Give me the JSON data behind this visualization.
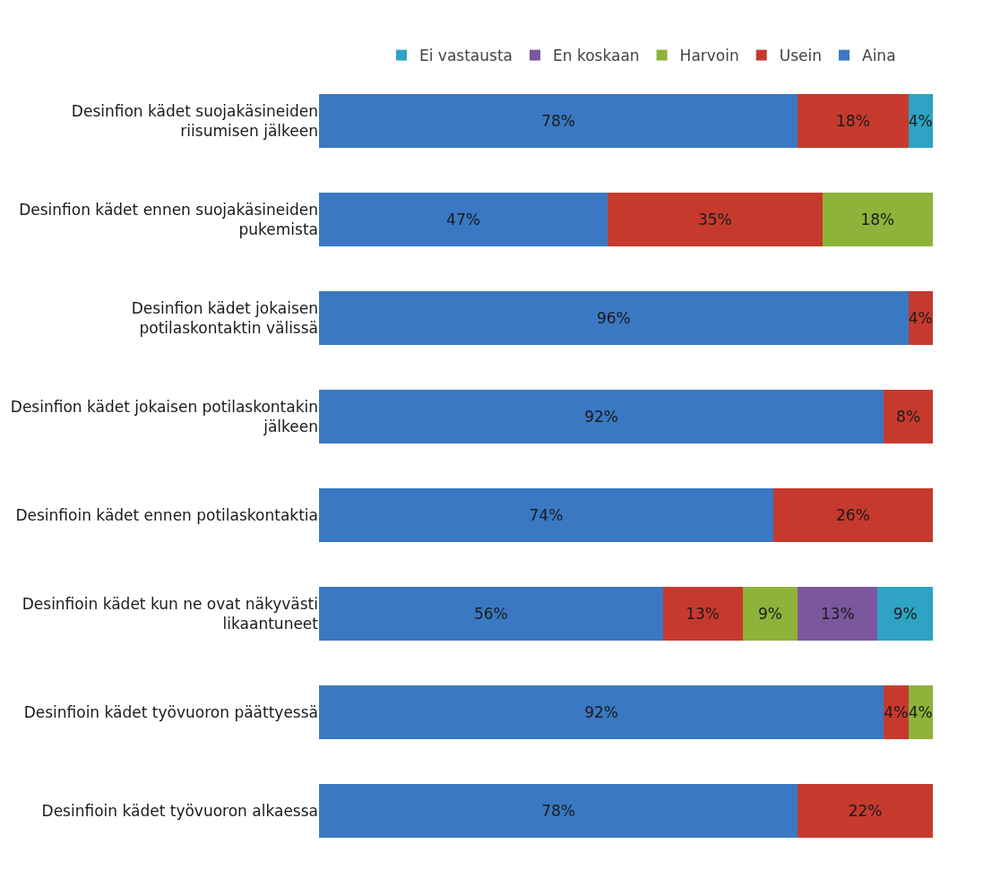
{
  "chart_data": {
    "type": "bar",
    "orientation": "horizontal",
    "stacked": true,
    "legend": "top",
    "grid": false,
    "categories": [
      "Desinfion kädet suojakäsineiden riisumisen jälkeen",
      "Desinfion kädet ennen suojakäsineiden pukemista",
      "Desinfion kädet jokaisen potilaskontaktin välissä",
      "Desinfion kädet jokaisen potilaskontakin jälkeen",
      "Desinfioin kädet ennen potilaskontaktia",
      "Desinfioin kädet kun ne ovat näkyvästi likaantuneet",
      "Desinfioin kädet työvuoron päättyessä",
      "Desinfioin kädet työvuoron alkaessa"
    ],
    "series": [
      {
        "name": "Aina",
        "color": "#3a78c3",
        "values": [
          78,
          47,
          96,
          92,
          74,
          56,
          92,
          78
        ],
        "value_labels": [
          "78%",
          "47%",
          "96%",
          "92%",
          "74%",
          "56%",
          "92%",
          "78%"
        ]
      },
      {
        "name": "Usein",
        "color": "#c63a2e",
        "values": [
          18,
          35,
          4,
          8,
          26,
          13,
          4,
          22
        ],
        "value_labels": [
          "18%",
          "35%",
          "4%",
          "8%",
          "26%",
          "13%",
          "4%",
          "22%"
        ]
      },
      {
        "name": "Harvoin",
        "color": "#8db33a",
        "values": [
          null,
          18,
          null,
          null,
          null,
          9,
          4,
          null
        ],
        "value_labels": [
          null,
          "18%",
          null,
          null,
          null,
          "9%",
          "4%",
          null
        ]
      },
      {
        "name": "En koskaan",
        "color": "#7b579e",
        "values": [
          null,
          null,
          null,
          null,
          null,
          13,
          null,
          null
        ],
        "value_labels": [
          null,
          null,
          null,
          null,
          null,
          "13%",
          null,
          null
        ]
      },
      {
        "name": "Ei vastausta",
        "color": "#2ea3c4",
        "values": [
          4,
          null,
          null,
          null,
          null,
          9,
          null,
          null
        ],
        "value_labels": [
          "4%",
          null,
          null,
          null,
          null,
          "9%",
          null,
          null
        ]
      }
    ]
  }
}
